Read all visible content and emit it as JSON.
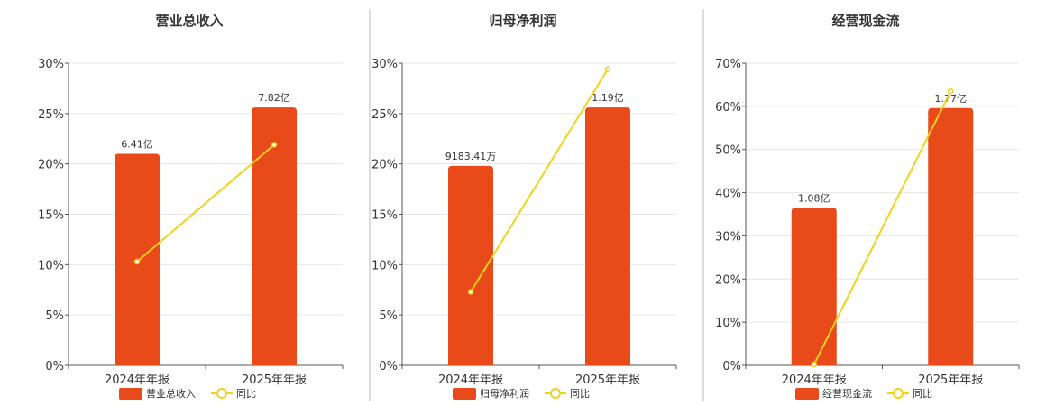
{
  "colors": {
    "bar": "#E84A1A",
    "line": "#F2D21A",
    "grid": "#E6E6E6",
    "axis": "#555555",
    "divider": "#BBBBBB"
  },
  "chart_data": [
    {
      "type": "bar",
      "title": "营业总收入",
      "categories": [
        "2024年年报",
        "2025年年报"
      ],
      "bar_labels": [
        "6.41亿",
        "7.82亿"
      ],
      "bar_values": [
        21.0,
        25.6
      ],
      "line_values": [
        10.3,
        21.9
      ],
      "yticks": [
        "0%",
        "5%",
        "10%",
        "15%",
        "20%",
        "25%",
        "30%"
      ],
      "ylim": [
        0,
        30
      ],
      "grid": true,
      "legend": [
        "营业总收入",
        "同比"
      ],
      "legend_position": "bottom"
    },
    {
      "type": "bar",
      "title": "归母净利润",
      "categories": [
        "2024年年报",
        "2025年年报"
      ],
      "bar_labels": [
        "9183.41万",
        "1.19亿"
      ],
      "bar_values": [
        19.8,
        25.6
      ],
      "line_values": [
        7.3,
        29.4
      ],
      "yticks": [
        "0%",
        "5%",
        "10%",
        "15%",
        "20%",
        "25%",
        "30%"
      ],
      "ylim": [
        0,
        30
      ],
      "grid": true,
      "legend": [
        "归母净利润",
        "同比"
      ],
      "legend_position": "bottom"
    },
    {
      "type": "bar",
      "title": "经营现金流",
      "categories": [
        "2024年年报",
        "2025年年报"
      ],
      "bar_labels": [
        "1.08亿",
        "1.77亿"
      ],
      "bar_values": [
        36.5,
        59.6
      ],
      "line_values": [
        0.2,
        63.5
      ],
      "yticks": [
        "0%",
        "10%",
        "20%",
        "30%",
        "40%",
        "50%",
        "60%",
        "70%"
      ],
      "ylim": [
        0,
        70
      ],
      "grid": true,
      "legend": [
        "经营现金流",
        "同比"
      ],
      "legend_position": "bottom"
    }
  ]
}
